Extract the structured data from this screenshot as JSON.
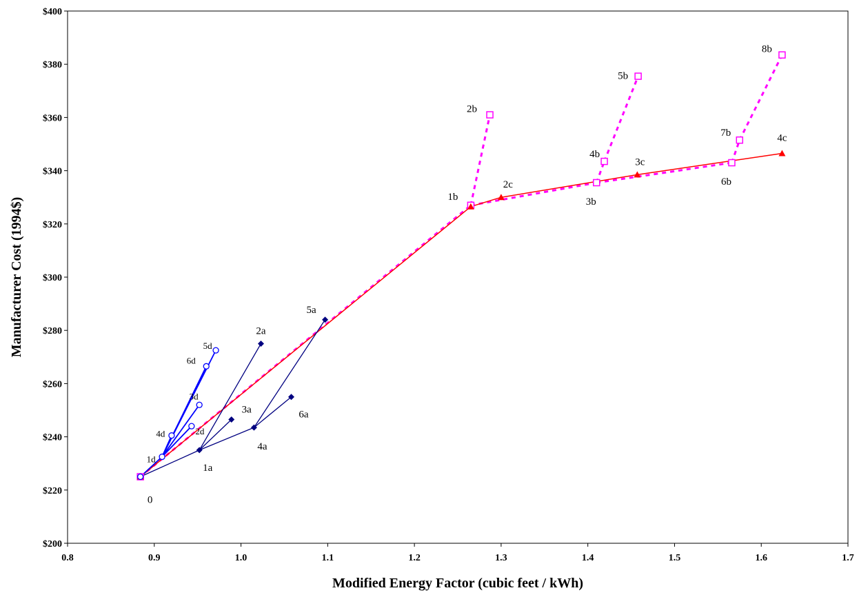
{
  "chart_data": {
    "type": "scatter",
    "xlabel": "Modified Energy Factor (cubic feet / kWh)",
    "ylabel": "Manufacturer Cost  (1994$)",
    "xlim": [
      0.8,
      1.7
    ],
    "ylim": [
      200,
      400
    ],
    "x_ticks": [
      "0.8",
      "0.9",
      "1.0",
      "1.1",
      "1.2",
      "1.3",
      "1.4",
      "1.5",
      "1.6",
      "1.7"
    ],
    "y_ticks": [
      "$200",
      "$220",
      "$240",
      "$260",
      "$280",
      "$300",
      "$320",
      "$340",
      "$360",
      "$380",
      "$400"
    ],
    "grid": false,
    "legend": "none",
    "series": [
      {
        "group": "a",
        "style": "star",
        "color": "#000080",
        "marker": "diamond",
        "origin": {
          "x": 0.884,
          "y": 225
        },
        "points": [
          {
            "label": "1a",
            "x": 0.952,
            "y": 235,
            "from": "0"
          },
          {
            "label": "2a",
            "x": 1.023,
            "y": 275,
            "from": "1a"
          },
          {
            "label": "3a",
            "x": 0.989,
            "y": 246.5,
            "from": "1a"
          },
          {
            "label": "4a",
            "x": 1.015,
            "y": 243.5,
            "from": "1a"
          },
          {
            "label": "5a",
            "x": 1.097,
            "y": 284,
            "from": "4a"
          },
          {
            "label": "6a",
            "x": 1.058,
            "y": 255,
            "from": "4a"
          }
        ]
      },
      {
        "group": "d",
        "style": "star",
        "color": "#0000ff",
        "marker": "circle",
        "points": [
          {
            "label": "1d",
            "x": 0.909,
            "y": 232.5,
            "from": "0"
          },
          {
            "label": "2d",
            "x": 0.943,
            "y": 244,
            "from": "1d"
          },
          {
            "label": "3d",
            "x": 0.952,
            "y": 252,
            "from": "1d"
          },
          {
            "label": "4d",
            "x": 0.92,
            "y": 240.5,
            "from": "1d"
          },
          {
            "label": "5d",
            "x": 0.971,
            "y": 272.5,
            "from": "1d"
          },
          {
            "label": "6d",
            "x": 0.96,
            "y": 266.5,
            "from": "1d"
          }
        ]
      },
      {
        "group": "c",
        "style": "path",
        "color": "#ff0000",
        "marker": "triangle",
        "points": [
          {
            "label": "0",
            "x": 0.884,
            "y": 225
          },
          {
            "label": "1b",
            "x": 1.265,
            "y": 326.5
          },
          {
            "label": "2c",
            "x": 1.3,
            "y": 330
          },
          {
            "label": "3c",
            "x": 1.457,
            "y": 338.5
          },
          {
            "label": "4c",
            "x": 1.624,
            "y": 346.5
          }
        ]
      },
      {
        "group": "b",
        "style": "dashed-path",
        "color": "#ff00ff",
        "marker": "square",
        "points": [
          {
            "label": "0",
            "x": 0.884,
            "y": 225
          },
          {
            "label": "1b",
            "x": 1.265,
            "y": 327
          },
          {
            "label": "3b",
            "x": 1.41,
            "y": 335.5
          },
          {
            "label": "6b",
            "x": 1.566,
            "y": 343
          }
        ],
        "branches": [
          {
            "label": "2b",
            "x": 1.287,
            "y": 361,
            "from": "1b"
          },
          {
            "label": "4b",
            "x": 1.419,
            "y": 343.5,
            "from": "3b"
          },
          {
            "label": "5b",
            "x": 1.458,
            "y": 375.5,
            "from": "4b"
          },
          {
            "label": "7b",
            "x": 1.575,
            "y": 351.5,
            "from": "6b"
          },
          {
            "label": "8b",
            "x": 1.624,
            "y": 383.5,
            "from": "7b"
          }
        ]
      }
    ],
    "annotations": [
      "0",
      "1a",
      "2a",
      "3a",
      "4a",
      "5a",
      "6a",
      "1b",
      "2b",
      "3b",
      "4b",
      "5b",
      "6b",
      "7b",
      "8b",
      "2c",
      "3c",
      "4c",
      "1d",
      "2d",
      "3d",
      "4d",
      "5d",
      "6d"
    ]
  }
}
